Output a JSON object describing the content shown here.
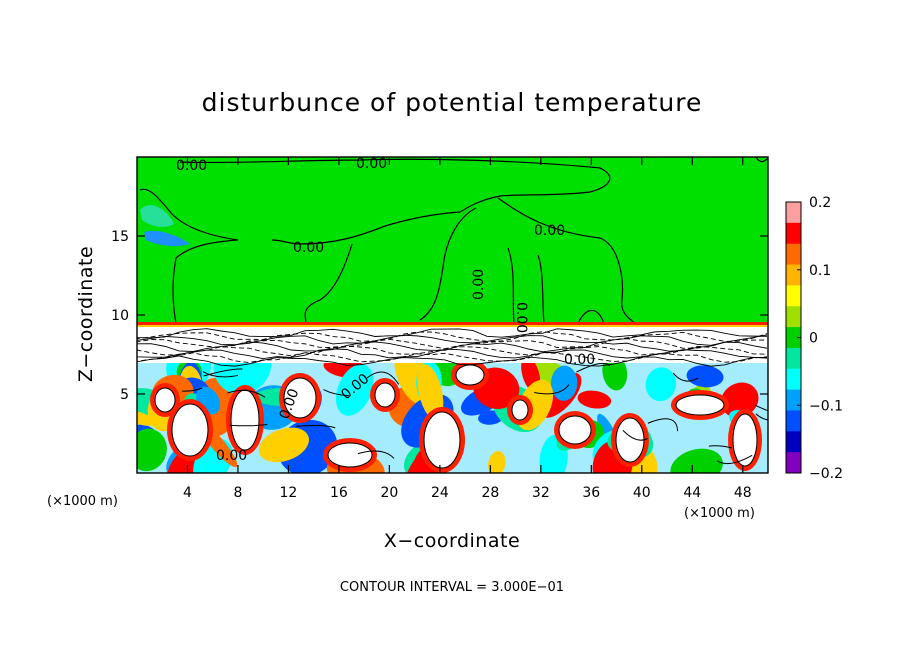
{
  "chart_data": {
    "type": "heatmap",
    "title": "disturbunce of potential temperature",
    "xlabel": "X−coordinate",
    "ylabel": "Z−coordinate",
    "x_unit_left": "(×1000 m)",
    "x_unit_right": "(×1000 m)",
    "xlim": [
      0,
      50
    ],
    "ylim": [
      0,
      20
    ],
    "x_ticks": [
      4,
      8,
      12,
      16,
      20,
      24,
      28,
      32,
      36,
      40,
      44,
      48
    ],
    "y_ticks": [
      5,
      10,
      15
    ],
    "colorbar": {
      "range": [
        -0.2,
        0.2
      ],
      "ticks": [
        0.2,
        0.1,
        0,
        -0.1,
        -0.2
      ],
      "tick_labels": [
        "0.2",
        "0.1",
        "0",
        "−0.1",
        "−0.2"
      ],
      "colors": [
        "#ffa0a0",
        "#ff0000",
        "#ff6a00",
        "#ffb400",
        "#ffff00",
        "#a0e000",
        "#00d000",
        "#00e8a0",
        "#00ffff",
        "#00a0ff",
        "#0050ff",
        "#0000c0",
        "#8000c0"
      ]
    },
    "background_value": 0,
    "contour_interval": "3.000E−01",
    "contour_labels": [
      "0.00",
      "0.00",
      "0.00",
      "0.00",
      "0.00",
      "0.00",
      "0.00",
      "0.00",
      "0.00",
      "0.00"
    ],
    "grid": false
  },
  "footer": {
    "contour_interval_text": "CONTOUR INTERVAL = 3.000E−01"
  }
}
